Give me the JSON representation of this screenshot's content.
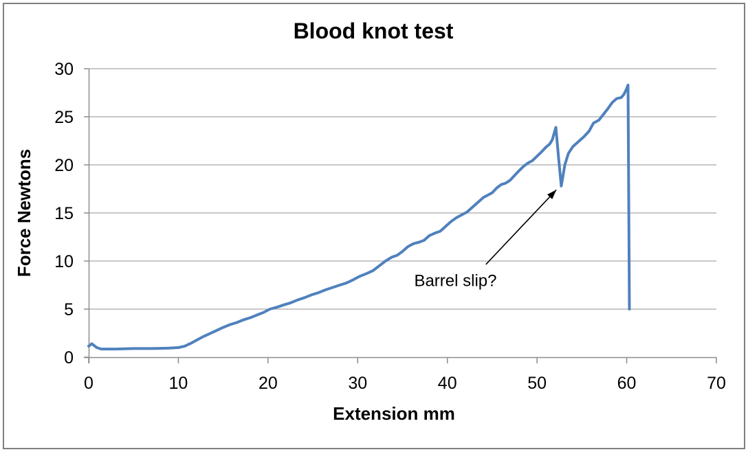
{
  "chart_data": {
    "type": "line",
    "title": "Blood knot test",
    "xlabel": "Extension mm",
    "ylabel": "Force Newtons",
    "xlim": [
      0,
      70
    ],
    "ylim": [
      0,
      30
    ],
    "x_ticks": [
      0,
      10,
      20,
      30,
      40,
      50,
      60,
      70
    ],
    "y_ticks": [
      0,
      5,
      10,
      15,
      20,
      25,
      30
    ],
    "grid": "horizontal",
    "legend": "none",
    "series": [
      {
        "color": "#4F81BD",
        "points": [
          [
            0,
            1.15
          ],
          [
            0.35,
            1.4
          ],
          [
            0.9,
            1.0
          ],
          [
            1.4,
            0.85
          ],
          [
            2.2,
            0.85
          ],
          [
            3,
            0.85
          ],
          [
            4,
            0.87
          ],
          [
            5,
            0.9
          ],
          [
            6,
            0.9
          ],
          [
            7,
            0.9
          ],
          [
            8,
            0.92
          ],
          [
            9,
            0.95
          ],
          [
            10,
            1.0
          ],
          [
            10.7,
            1.15
          ],
          [
            11.4,
            1.45
          ],
          [
            12.1,
            1.8
          ],
          [
            12.8,
            2.15
          ],
          [
            13.5,
            2.45
          ],
          [
            14.2,
            2.75
          ],
          [
            15,
            3.1
          ],
          [
            15.8,
            3.4
          ],
          [
            16.5,
            3.6
          ],
          [
            17.3,
            3.9
          ],
          [
            18,
            4.1
          ],
          [
            18.8,
            4.4
          ],
          [
            19.5,
            4.65
          ],
          [
            20.2,
            5.0
          ],
          [
            21,
            5.2
          ],
          [
            21.8,
            5.45
          ],
          [
            22.5,
            5.65
          ],
          [
            23.3,
            5.95
          ],
          [
            24.1,
            6.2
          ],
          [
            24.9,
            6.5
          ],
          [
            25.6,
            6.7
          ],
          [
            26.4,
            7.0
          ],
          [
            27.2,
            7.25
          ],
          [
            28,
            7.5
          ],
          [
            28.7,
            7.7
          ],
          [
            29.5,
            8.05
          ],
          [
            30.2,
            8.4
          ],
          [
            31,
            8.7
          ],
          [
            31.7,
            9.0
          ],
          [
            32.4,
            9.5
          ],
          [
            33.1,
            10.0
          ],
          [
            33.8,
            10.4
          ],
          [
            34.4,
            10.6
          ],
          [
            35,
            11.0
          ],
          [
            35.6,
            11.5
          ],
          [
            36.2,
            11.8
          ],
          [
            36.8,
            11.95
          ],
          [
            37.4,
            12.15
          ],
          [
            38,
            12.65
          ],
          [
            38.6,
            12.9
          ],
          [
            39.2,
            13.1
          ],
          [
            39.8,
            13.6
          ],
          [
            40.4,
            14.1
          ],
          [
            41,
            14.5
          ],
          [
            41.6,
            14.8
          ],
          [
            42.2,
            15.1
          ],
          [
            42.8,
            15.6
          ],
          [
            43.4,
            16.1
          ],
          [
            44,
            16.6
          ],
          [
            44.5,
            16.85
          ],
          [
            45,
            17.1
          ],
          [
            45.5,
            17.6
          ],
          [
            46,
            17.95
          ],
          [
            46.5,
            18.1
          ],
          [
            47,
            18.4
          ],
          [
            47.5,
            18.9
          ],
          [
            48,
            19.4
          ],
          [
            48.5,
            19.85
          ],
          [
            49,
            20.2
          ],
          [
            49.5,
            20.45
          ],
          [
            50,
            20.9
          ],
          [
            50.5,
            21.35
          ],
          [
            51,
            21.85
          ],
          [
            51.4,
            22.15
          ],
          [
            51.7,
            22.6
          ],
          [
            52.1,
            23.9
          ],
          [
            52.4,
            20.8
          ],
          [
            52.7,
            17.8
          ],
          [
            53.1,
            20.0
          ],
          [
            53.5,
            21.2
          ],
          [
            54.0,
            21.9
          ],
          [
            54.6,
            22.4
          ],
          [
            55.2,
            22.9
          ],
          [
            55.8,
            23.5
          ],
          [
            56.3,
            24.35
          ],
          [
            56.9,
            24.65
          ],
          [
            57.4,
            25.25
          ],
          [
            57.9,
            25.85
          ],
          [
            58.4,
            26.5
          ],
          [
            58.9,
            26.9
          ],
          [
            59.4,
            27.0
          ],
          [
            59.7,
            27.35
          ],
          [
            60.0,
            27.95
          ],
          [
            60.15,
            28.3
          ],
          [
            60.3,
            5.0
          ]
        ]
      }
    ],
    "annotation": {
      "text": "Barrel slip?",
      "text_pos": [
        36.3,
        7.4
      ],
      "arrow_from": [
        44.3,
        9.65
      ],
      "arrow_to": [
        52.15,
        17.4
      ]
    }
  },
  "colors": {
    "line": "#4F81BD",
    "gridline": "#A6A6A6",
    "axis": "#8C8C8C",
    "text": "#000000",
    "border": "#7F7F7F",
    "background": "#FFFFFF"
  }
}
